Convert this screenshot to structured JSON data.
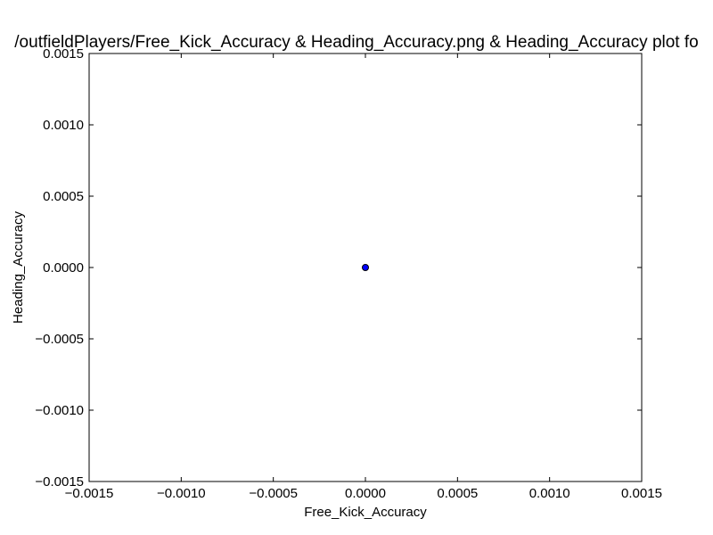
{
  "chart_data": {
    "type": "scatter",
    "title": "/outfieldPlayers/Free_Kick_Accuracy & Heading_Accuracy.png & Heading_Accuracy plot fo",
    "xlabel": "Free_Kick_Accuracy",
    "ylabel": "Heading_Accuracy",
    "xlim": [
      -0.0015,
      0.0015
    ],
    "ylim": [
      -0.0015,
      0.0015
    ],
    "xticks": [
      -0.0015,
      -0.001,
      -0.0005,
      0.0,
      0.0005,
      0.001,
      0.0015
    ],
    "yticks": [
      -0.0015,
      -0.001,
      -0.0005,
      0.0,
      0.0005,
      0.001,
      0.0015
    ],
    "xtick_labels": [
      "−0.0015",
      "−0.0010",
      "−0.0005",
      "0.0000",
      "0.0005",
      "0.0010",
      "0.0015"
    ],
    "ytick_labels": [
      "−0.0015",
      "−0.0010",
      "−0.0005",
      "0.0000",
      "0.0005",
      "0.0010",
      "0.0015"
    ],
    "grid": false,
    "marker_color": "#0000ff",
    "series": [
      {
        "x": [
          0.0
        ],
        "y": [
          0.0
        ]
      }
    ]
  }
}
